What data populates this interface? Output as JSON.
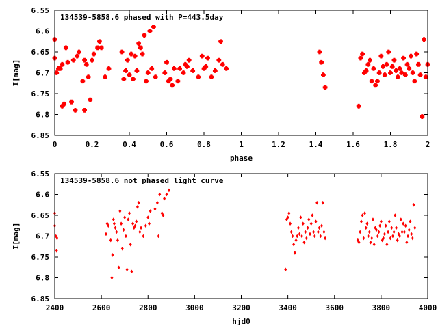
{
  "chart_data": [
    {
      "type": "scatter",
      "title": "134539-5858.6 phased with P=443.5day",
      "xlabel": "phase",
      "ylabel": "I[mag]",
      "xlim": [
        0,
        2
      ],
      "ylim": [
        6.55,
        6.85
      ],
      "y_inverted": true,
      "x_ticks": [
        0,
        0.2,
        0.4,
        0.6,
        0.8,
        1,
        1.2,
        1.4,
        1.6,
        1.8,
        2
      ],
      "x_tick_labels": [
        "0",
        "0.2",
        "0.4",
        "0.6",
        "0.8",
        "1",
        "1.2",
        "1.4",
        "1.6",
        "1.8",
        "2"
      ],
      "y_ticks": [
        6.55,
        6.6,
        6.65,
        6.7,
        6.75,
        6.8,
        6.85
      ],
      "y_tick_labels": [
        "6.55",
        "6.6",
        "6.65",
        "6.7",
        "6.75",
        "6.8",
        "6.85"
      ],
      "marker": "star",
      "color": "#ff0000",
      "points": [
        [
          0.0,
          6.62
        ],
        [
          0.0,
          6.665
        ],
        [
          0.01,
          6.7
        ],
        [
          0.02,
          6.69
        ],
        [
          0.03,
          6.69
        ],
        [
          0.04,
          6.78
        ],
        [
          0.05,
          6.775
        ],
        [
          0.04,
          6.68
        ],
        [
          0.06,
          6.64
        ],
        [
          0.07,
          6.675
        ],
        [
          0.09,
          6.77
        ],
        [
          0.1,
          6.67
        ],
        [
          0.11,
          6.79
        ],
        [
          0.12,
          6.66
        ],
        [
          0.13,
          6.65
        ],
        [
          0.15,
          6.72
        ],
        [
          0.16,
          6.79
        ],
        [
          0.16,
          6.67
        ],
        [
          0.17,
          6.68
        ],
        [
          0.18,
          6.71
        ],
        [
          0.19,
          6.765
        ],
        [
          0.2,
          6.67
        ],
        [
          0.21,
          6.655
        ],
        [
          0.23,
          6.64
        ],
        [
          0.24,
          6.625
        ],
        [
          0.25,
          6.64
        ],
        [
          0.27,
          6.71
        ],
        [
          0.29,
          6.69
        ],
        [
          0.36,
          6.65
        ],
        [
          0.37,
          6.715
        ],
        [
          0.38,
          6.695
        ],
        [
          0.39,
          6.67
        ],
        [
          0.4,
          6.705
        ],
        [
          0.41,
          6.655
        ],
        [
          0.42,
          6.715
        ],
        [
          0.43,
          6.66
        ],
        [
          0.44,
          6.695
        ],
        [
          0.45,
          6.63
        ],
        [
          0.46,
          6.64
        ],
        [
          0.47,
          6.655
        ],
        [
          0.48,
          6.61
        ],
        [
          0.49,
          6.72
        ],
        [
          0.5,
          6.7
        ],
        [
          0.51,
          6.6
        ],
        [
          0.52,
          6.69
        ],
        [
          0.53,
          6.59
        ],
        [
          0.54,
          6.71
        ],
        [
          0.59,
          6.7
        ],
        [
          0.6,
          6.675
        ],
        [
          0.61,
          6.72
        ],
        [
          0.62,
          6.715
        ],
        [
          0.63,
          6.73
        ],
        [
          0.64,
          6.69
        ],
        [
          0.66,
          6.72
        ],
        [
          0.67,
          6.69
        ],
        [
          0.69,
          6.7
        ],
        [
          0.7,
          6.68
        ],
        [
          0.71,
          6.685
        ],
        [
          0.72,
          6.67
        ],
        [
          0.74,
          6.695
        ],
        [
          0.77,
          6.71
        ],
        [
          0.79,
          6.66
        ],
        [
          0.8,
          6.69
        ],
        [
          0.81,
          6.685
        ],
        [
          0.82,
          6.665
        ],
        [
          0.84,
          6.71
        ],
        [
          0.86,
          6.695
        ],
        [
          0.88,
          6.67
        ],
        [
          0.89,
          6.625
        ],
        [
          0.9,
          6.68
        ],
        [
          0.92,
          6.69
        ],
        [
          1.42,
          6.65
        ],
        [
          1.43,
          6.675
        ],
        [
          1.44,
          6.705
        ],
        [
          1.45,
          6.735
        ],
        [
          1.63,
          6.78
        ],
        [
          1.64,
          6.665
        ],
        [
          1.65,
          6.655
        ],
        [
          1.66,
          6.7
        ],
        [
          1.67,
          6.695
        ],
        [
          1.68,
          6.68
        ],
        [
          1.69,
          6.67
        ],
        [
          1.7,
          6.72
        ],
        [
          1.71,
          6.69
        ],
        [
          1.72,
          6.73
        ],
        [
          1.73,
          6.72
        ],
        [
          1.74,
          6.7
        ],
        [
          1.75,
          6.66
        ],
        [
          1.76,
          6.685
        ],
        [
          1.77,
          6.705
        ],
        [
          1.78,
          6.68
        ],
        [
          1.79,
          6.65
        ],
        [
          1.8,
          6.7
        ],
        [
          1.81,
          6.685
        ],
        [
          1.82,
          6.67
        ],
        [
          1.83,
          6.695
        ],
        [
          1.84,
          6.71
        ],
        [
          1.85,
          6.69
        ],
        [
          1.86,
          6.7
        ],
        [
          1.87,
          6.665
        ],
        [
          1.88,
          6.705
        ],
        [
          1.89,
          6.68
        ],
        [
          1.9,
          6.69
        ],
        [
          1.91,
          6.66
        ],
        [
          1.92,
          6.7
        ],
        [
          1.93,
          6.72
        ],
        [
          1.94,
          6.655
        ],
        [
          1.95,
          6.68
        ],
        [
          1.96,
          6.705
        ],
        [
          1.97,
          6.805
        ],
        [
          1.98,
          6.62
        ],
        [
          1.99,
          6.71
        ],
        [
          2.0,
          6.68
        ]
      ]
    },
    {
      "type": "scatter",
      "title": "134539-5858.6 not phased light curve",
      "xlabel": "hjd0",
      "ylabel": "I[mag]",
      "xlim": [
        2400,
        4000
      ],
      "ylim": [
        6.55,
        6.85
      ],
      "y_inverted": true,
      "x_ticks": [
        2400,
        2600,
        2800,
        3000,
        3200,
        3400,
        3600,
        3800,
        4000
      ],
      "x_tick_labels": [
        "2400",
        "2600",
        "2800",
        "3000",
        "3200",
        "3400",
        "3600",
        "3800",
        "4000"
      ],
      "y_ticks": [
        6.55,
        6.6,
        6.65,
        6.7,
        6.75,
        6.8,
        6.85
      ],
      "y_tick_labels": [
        "6.55",
        "6.6",
        "6.65",
        "6.7",
        "6.75",
        "6.8",
        "6.85"
      ],
      "marker": "diamond",
      "color": "#ff0000",
      "points": [
        [
          2400,
          6.645
        ],
        [
          2400,
          6.675
        ],
        [
          2405,
          6.7
        ],
        [
          2408,
          6.735
        ],
        [
          2410,
          6.705
        ],
        [
          2620,
          6.695
        ],
        [
          2625,
          6.67
        ],
        [
          2630,
          6.675
        ],
        [
          2640,
          6.71
        ],
        [
          2645,
          6.8
        ],
        [
          2648,
          6.745
        ],
        [
          2652,
          6.66
        ],
        [
          2655,
          6.67
        ],
        [
          2660,
          6.68
        ],
        [
          2665,
          6.69
        ],
        [
          2670,
          6.71
        ],
        [
          2675,
          6.775
        ],
        [
          2680,
          6.64
        ],
        [
          2685,
          6.67
        ],
        [
          2690,
          6.73
        ],
        [
          2695,
          6.685
        ],
        [
          2700,
          6.655
        ],
        [
          2705,
          6.7
        ],
        [
          2710,
          6.78
        ],
        [
          2715,
          6.66
        ],
        [
          2720,
          6.645
        ],
        [
          2725,
          6.72
        ],
        [
          2730,
          6.785
        ],
        [
          2735,
          6.67
        ],
        [
          2740,
          6.68
        ],
        [
          2745,
          6.675
        ],
        [
          2750,
          6.665
        ],
        [
          2755,
          6.63
        ],
        [
          2760,
          6.62
        ],
        [
          2765,
          6.69
        ],
        [
          2770,
          6.68
        ],
        [
          2780,
          6.7
        ],
        [
          2790,
          6.675
        ],
        [
          2800,
          6.655
        ],
        [
          2805,
          6.67
        ],
        [
          2810,
          6.64
        ],
        [
          2830,
          6.635
        ],
        [
          2840,
          6.62
        ],
        [
          2845,
          6.7
        ],
        [
          2850,
          6.6
        ],
        [
          2860,
          6.645
        ],
        [
          2865,
          6.65
        ],
        [
          2870,
          6.61
        ],
        [
          2880,
          6.6
        ],
        [
          2890,
          6.59
        ],
        [
          3390,
          6.78
        ],
        [
          3395,
          6.66
        ],
        [
          3400,
          6.655
        ],
        [
          3405,
          6.645
        ],
        [
          3410,
          6.67
        ],
        [
          3415,
          6.69
        ],
        [
          3420,
          6.7
        ],
        [
          3425,
          6.72
        ],
        [
          3430,
          6.74
        ],
        [
          3435,
          6.71
        ],
        [
          3440,
          6.7
        ],
        [
          3445,
          6.68
        ],
        [
          3450,
          6.695
        ],
        [
          3455,
          6.655
        ],
        [
          3460,
          6.7
        ],
        [
          3465,
          6.67
        ],
        [
          3470,
          6.715
        ],
        [
          3475,
          6.69
        ],
        [
          3480,
          6.705
        ],
        [
          3485,
          6.68
        ],
        [
          3490,
          6.66
        ],
        [
          3495,
          6.695
        ],
        [
          3500,
          6.67
        ],
        [
          3505,
          6.65
        ],
        [
          3510,
          6.69
        ],
        [
          3515,
          6.7
        ],
        [
          3520,
          6.665
        ],
        [
          3525,
          6.62
        ],
        [
          3530,
          6.69
        ],
        [
          3535,
          6.68
        ],
        [
          3540,
          6.7
        ],
        [
          3545,
          6.675
        ],
        [
          3550,
          6.62
        ],
        [
          3555,
          6.69
        ],
        [
          3560,
          6.705
        ],
        [
          3700,
          6.71
        ],
        [
          3705,
          6.715
        ],
        [
          3710,
          6.69
        ],
        [
          3715,
          6.665
        ],
        [
          3720,
          6.65
        ],
        [
          3725,
          6.705
        ],
        [
          3730,
          6.645
        ],
        [
          3735,
          6.68
        ],
        [
          3740,
          6.67
        ],
        [
          3745,
          6.7
        ],
        [
          3750,
          6.69
        ],
        [
          3755,
          6.715
        ],
        [
          3760,
          6.705
        ],
        [
          3765,
          6.66
        ],
        [
          3770,
          6.72
        ],
        [
          3775,
          6.68
        ],
        [
          3780,
          6.685
        ],
        [
          3785,
          6.7
        ],
        [
          3790,
          6.69
        ],
        [
          3795,
          6.675
        ],
        [
          3800,
          6.665
        ],
        [
          3805,
          6.71
        ],
        [
          3810,
          6.705
        ],
        [
          3815,
          6.695
        ],
        [
          3820,
          6.675
        ],
        [
          3825,
          6.72
        ],
        [
          3830,
          6.69
        ],
        [
          3835,
          6.665
        ],
        [
          3840,
          6.705
        ],
        [
          3845,
          6.68
        ],
        [
          3850,
          6.7
        ],
        [
          3855,
          6.69
        ],
        [
          3860,
          6.65
        ],
        [
          3865,
          6.68
        ],
        [
          3870,
          6.71
        ],
        [
          3875,
          6.695
        ],
        [
          3880,
          6.7
        ],
        [
          3885,
          6.66
        ],
        [
          3890,
          6.69
        ],
        [
          3895,
          6.67
        ],
        [
          3900,
          6.69
        ],
        [
          3905,
          6.675
        ],
        [
          3910,
          6.715
        ],
        [
          3915,
          6.7
        ],
        [
          3920,
          6.685
        ],
        [
          3925,
          6.665
        ],
        [
          3930,
          6.695
        ],
        [
          3935,
          6.705
        ],
        [
          3940,
          6.625
        ],
        [
          3945,
          6.68
        ]
      ]
    }
  ]
}
